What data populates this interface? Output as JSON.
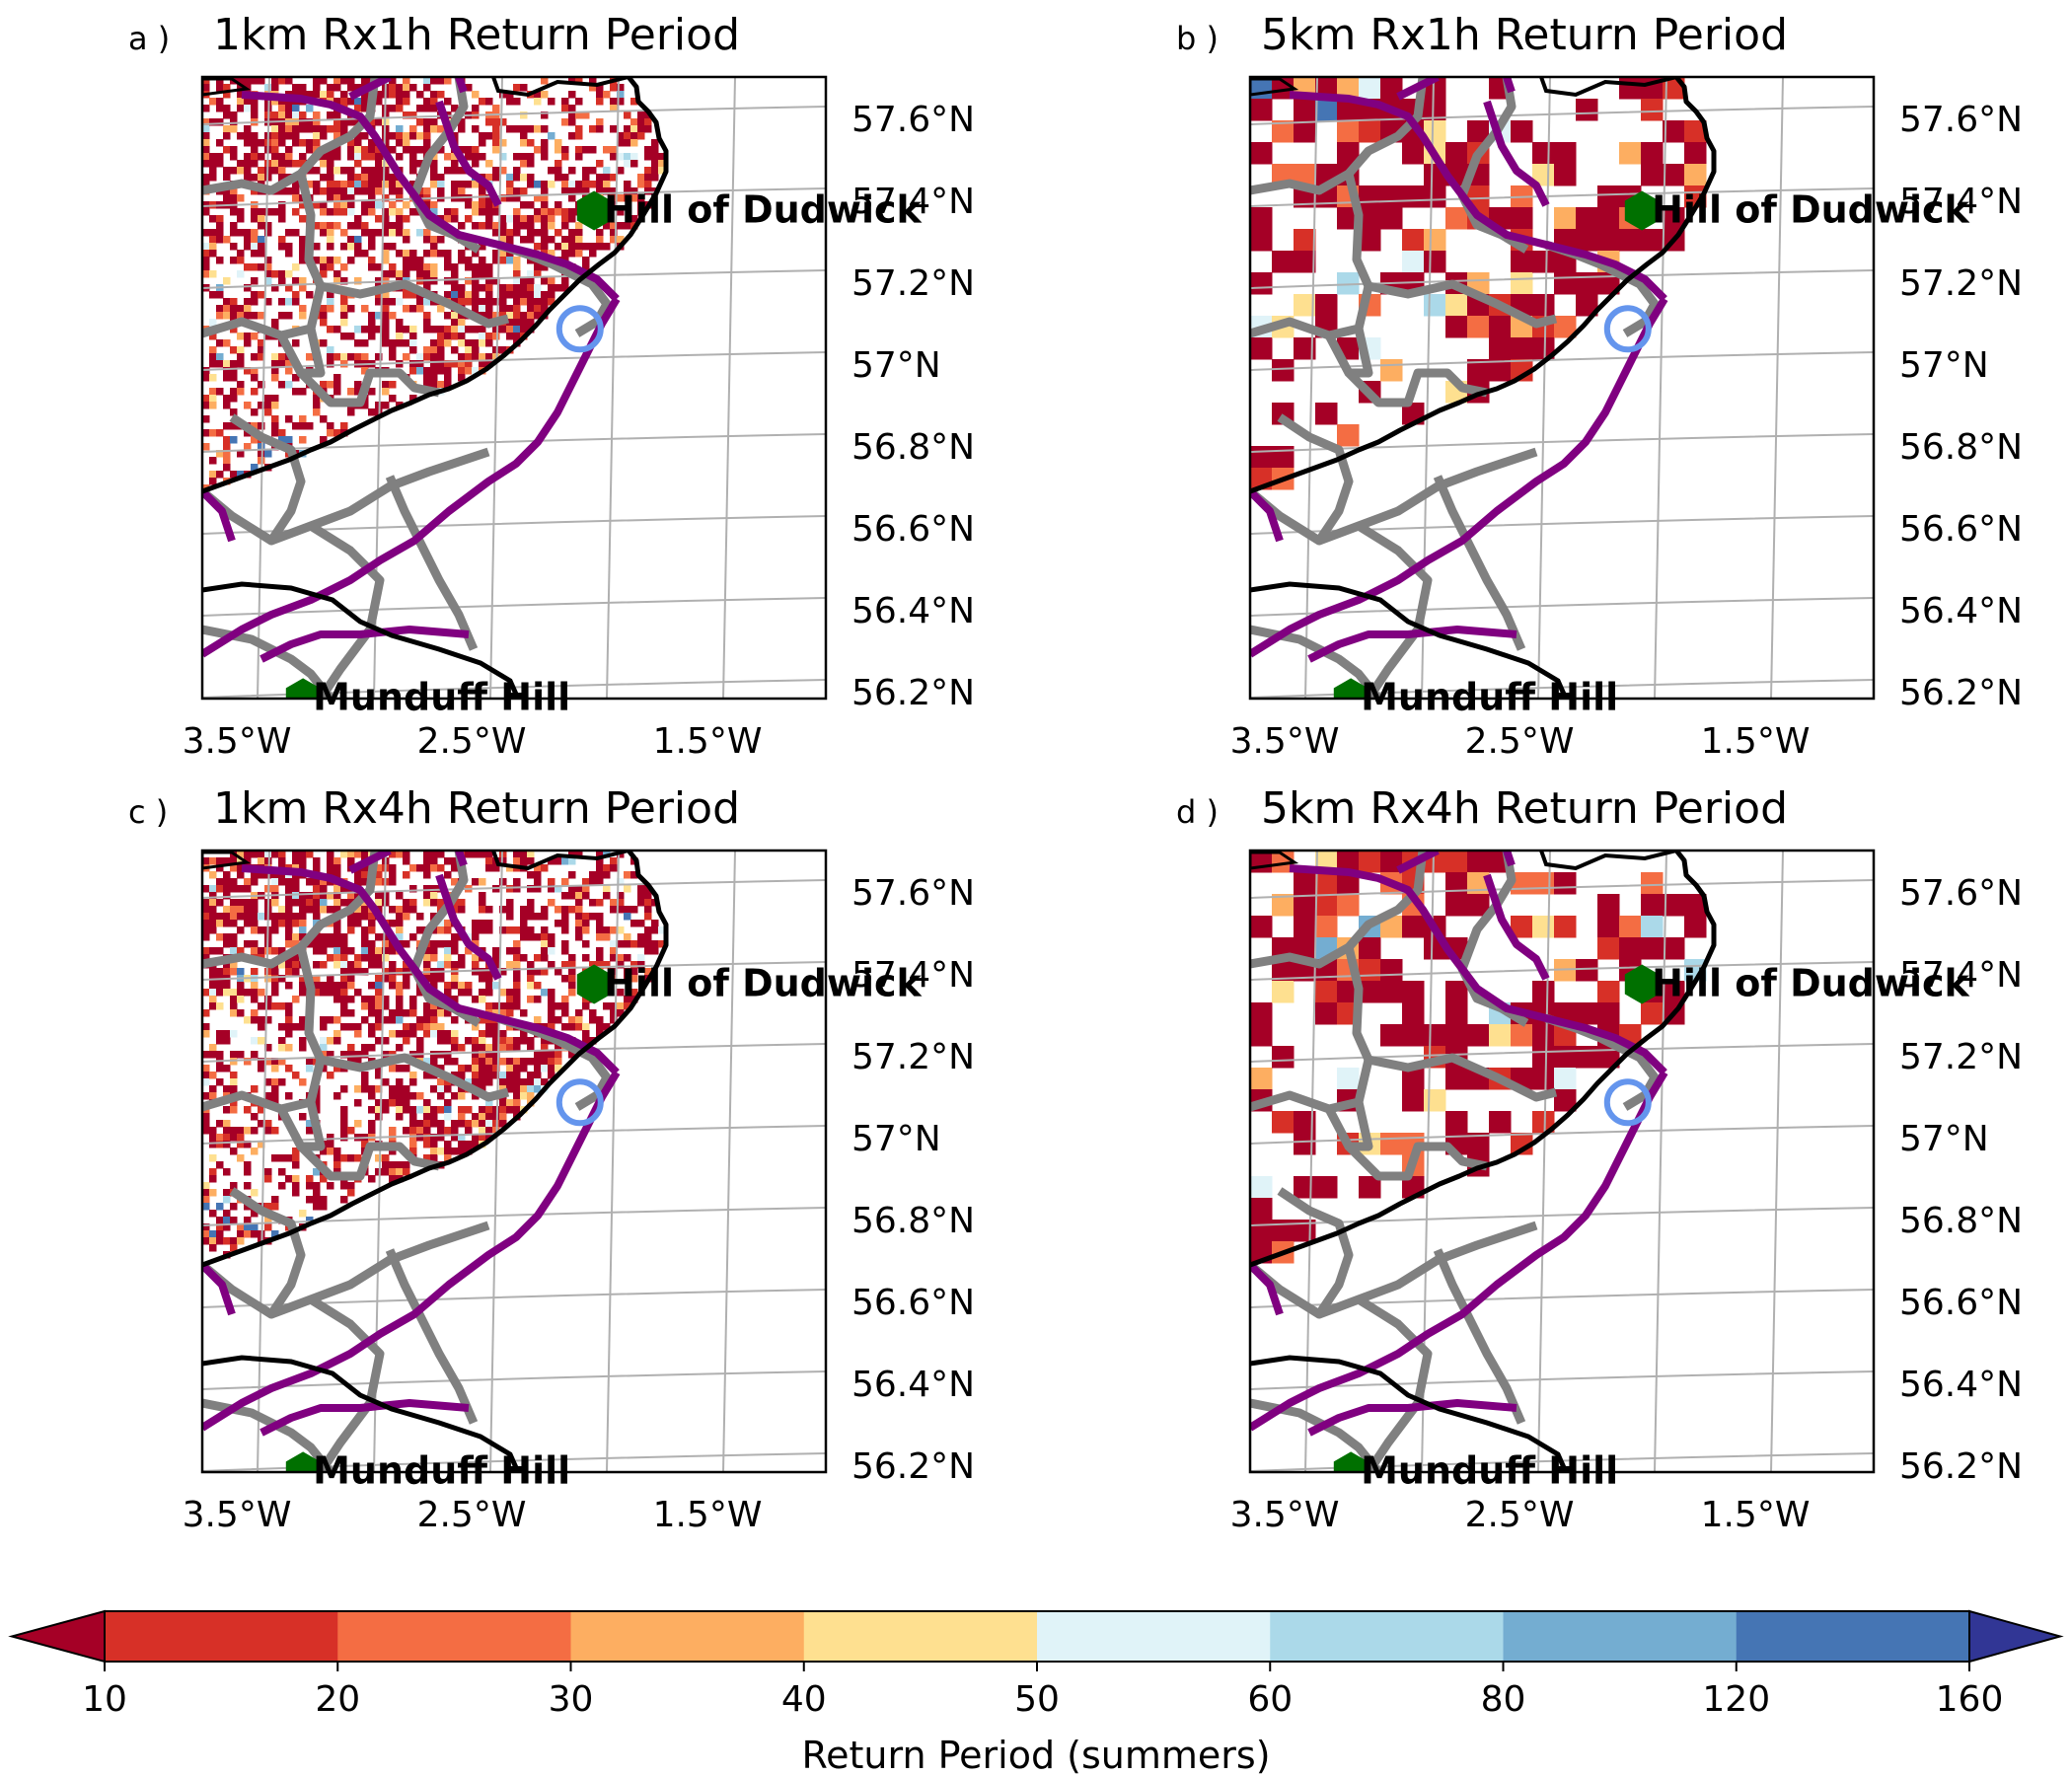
{
  "panels": [
    {
      "letter": "a )",
      "title": "1km Rx1h Return Period",
      "res": "1km",
      "dur": "Rx1h"
    },
    {
      "letter": "b )",
      "title": "5km Rx1h Return Period",
      "res": "5km",
      "dur": "Rx1h"
    },
    {
      "letter": "c )",
      "title": "1km Rx4h Return Period",
      "res": "1km",
      "dur": "Rx4h"
    },
    {
      "letter": "d )",
      "title": "5km Rx4h Return Period",
      "res": "5km",
      "dur": "Rx4h"
    }
  ],
  "lon_ticks": [
    "3.5°W",
    "2.5°W",
    "1.5°W"
  ],
  "lat_ticks": [
    "57.6°N",
    "57.4°N",
    "57.2°N",
    "57°N",
    "56.8°N",
    "56.6°N",
    "56.4°N",
    "56.2°N"
  ],
  "sites": [
    {
      "name": "Hill of Dudwick",
      "lon": -2.08,
      "lat": 57.43,
      "marker": "green-hexagon"
    },
    {
      "name": "Munduff Hill",
      "lon": -3.33,
      "lat": 56.24,
      "marker": "green-hexagon"
    }
  ],
  "aberdeen_marker": {
    "lon": -2.2,
    "lat": 57.05,
    "marker": "blue-circle"
  },
  "colorbar": {
    "label": "Return Period (summers)",
    "ticks": [
      "10",
      "20",
      "30",
      "40",
      "50",
      "60",
      "80",
      "120",
      "160"
    ],
    "colors": [
      "#a50026",
      "#d73027",
      "#f46d43",
      "#fdae61",
      "#fee090",
      "#e0f3f8",
      "#abd9e9",
      "#74add1",
      "#4575b4",
      "#313695"
    ],
    "extend": "both"
  },
  "style": {
    "boundary_color": "#800080",
    "region_color": "#808080",
    "coast_color": "#000000",
    "grid_color": "#b0b0b0",
    "site_color": "#007000",
    "ring_color": "#6495ed"
  }
}
